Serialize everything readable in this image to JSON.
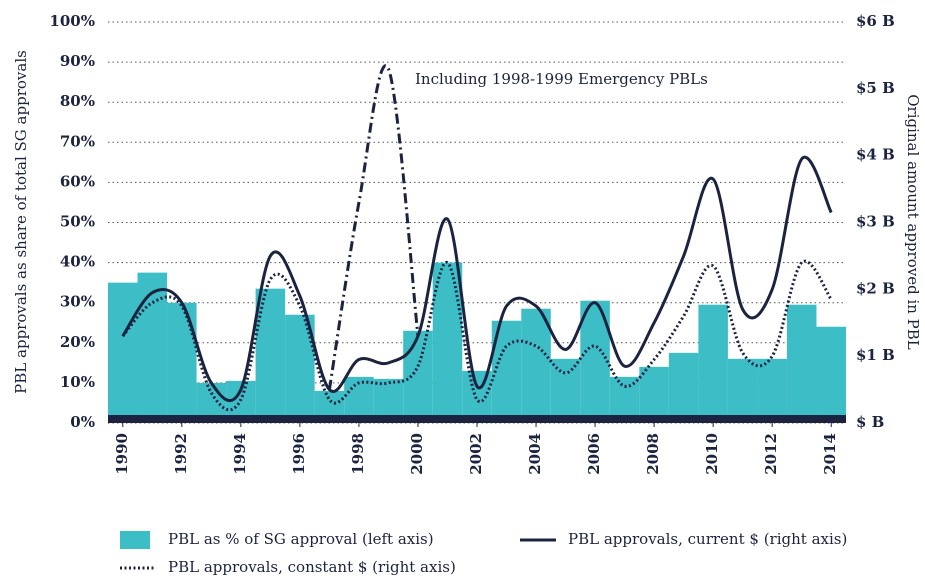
{
  "chart_data": {
    "type": "bar",
    "x": [
      1990,
      1991,
      1992,
      1993,
      1994,
      1995,
      1996,
      1997,
      1998,
      1999,
      2000,
      2001,
      2002,
      2003,
      2004,
      2005,
      2006,
      2007,
      2008,
      2009,
      2010,
      2011,
      2012,
      2013,
      2014
    ],
    "xticks": [
      1990,
      1992,
      1994,
      1996,
      1998,
      2000,
      2002,
      2004,
      2006,
      2008,
      2010,
      2012,
      2014
    ],
    "xlim": [
      1989.5,
      2014.5
    ],
    "ylabel": "PBL approvals as share of total SG approvals",
    "y2label": "Original amount approved in PBL",
    "ylim": [
      0,
      100
    ],
    "yticks": [
      {
        "value": 0,
        "label": "0%"
      },
      {
        "value": 10,
        "label": "10%"
      },
      {
        "value": 20,
        "label": "20%"
      },
      {
        "value": 30,
        "label": "30%"
      },
      {
        "value": 40,
        "label": "40%"
      },
      {
        "value": 50,
        "label": "50%"
      },
      {
        "value": 60,
        "label": "60%"
      },
      {
        "value": 70,
        "label": "70%"
      },
      {
        "value": 80,
        "label": "80%"
      },
      {
        "value": 90,
        "label": "90%"
      },
      {
        "value": 100,
        "label": "100%"
      }
    ],
    "y2lim": [
      0,
      6
    ],
    "y2ticks": [
      {
        "value": 0,
        "label": "$ B"
      },
      {
        "value": 1,
        "label": "$1 B"
      },
      {
        "value": 2,
        "label": "$2 B"
      },
      {
        "value": 3,
        "label": "$3 B"
      },
      {
        "value": 4,
        "label": "$4 B"
      },
      {
        "value": 5,
        "label": "$5 B"
      },
      {
        "value": 6,
        "label": "$6 B"
      }
    ],
    "grid": true,
    "series": [
      {
        "name": "PBL as % of SG approval (left axis)",
        "type": "bar",
        "color": "#3dbdc6",
        "values": [
          35,
          37.5,
          30,
          10,
          10.5,
          33.5,
          27,
          8,
          11.5,
          11,
          23,
          40,
          13,
          25.5,
          28.5,
          16,
          30.5,
          11.5,
          14,
          17.5,
          29.5,
          16,
          16,
          29.5,
          24
        ]
      },
      {
        "name": "PBL approvals, current $ (right axis)",
        "type": "line",
        "style": "solid",
        "axis": "y2",
        "color": "#1c2340",
        "values": [
          1.3,
          1.95,
          1.8,
          0.6,
          0.5,
          2.5,
          1.9,
          0.5,
          0.95,
          0.9,
          1.3,
          3.05,
          0.55,
          1.75,
          1.75,
          1.1,
          1.8,
          0.85,
          1.5,
          2.5,
          3.65,
          1.7,
          2.0,
          3.95,
          3.15
        ]
      },
      {
        "name": "PBL approvals, constant $ (right axis)",
        "type": "line",
        "style": "dotted",
        "axis": "y2",
        "color": "#1c2340",
        "values": [
          1.3,
          1.8,
          1.75,
          0.45,
          0.35,
          2.15,
          1.75,
          0.35,
          0.6,
          0.6,
          0.85,
          2.4,
          0.35,
          1.15,
          1.15,
          0.75,
          1.15,
          0.55,
          0.95,
          1.6,
          2.35,
          1.05,
          1.0,
          2.4,
          1.85
        ]
      }
    ],
    "annotation": {
      "text": "Including 1998-1999 Emergency PBLs",
      "style": "dashdot",
      "axis": "y2",
      "color": "#1c2340",
      "values": [
        null,
        null,
        null,
        null,
        null,
        null,
        null,
        0.5,
        3.3,
        5.3,
        1.3,
        null,
        null,
        null,
        null,
        null,
        null,
        null,
        null,
        null,
        null,
        null,
        null,
        null,
        null
      ]
    }
  }
}
